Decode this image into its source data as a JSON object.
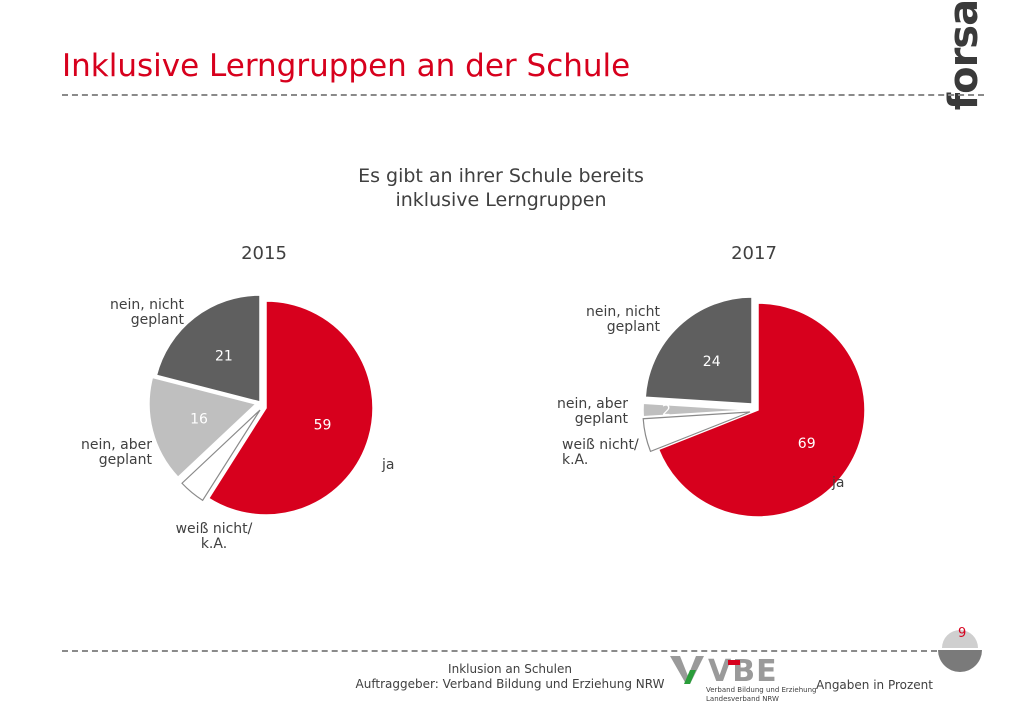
{
  "header": {
    "title": "Inklusive Lerngruppen an der Schule",
    "logo_text": "forsa."
  },
  "chart_data": [
    {
      "type": "pie",
      "title": "Es gibt an ihrer Schule bereits inklusive Lerngruppen",
      "year_label": "2015",
      "slices": [
        {
          "key": "ja",
          "label": "ja",
          "value": 59,
          "value_label": "59",
          "color": "#d7001d"
        },
        {
          "key": "weiss",
          "label": "weiß nicht/\nk.A.",
          "value": 4,
          "value_label": "",
          "color": "#ffffff"
        },
        {
          "key": "aber",
          "label": "nein, aber\ngeplant",
          "value": 16,
          "value_label": "16",
          "color": "#bfbfbf"
        },
        {
          "key": "nicht",
          "label": "nein, nicht\ngeplant",
          "value": 21,
          "value_label": "21",
          "color": "#5f5f5f"
        }
      ]
    },
    {
      "type": "pie",
      "title": "Es gibt an ihrer Schule bereits inklusive Lerngruppen",
      "year_label": "2017",
      "slices": [
        {
          "key": "ja",
          "label": "ja",
          "value": 69,
          "value_label": "69",
          "color": "#d7001d"
        },
        {
          "key": "weiss",
          "label": "weiß nicht/\nk.A.",
          "value": 5,
          "value_label": "",
          "color": "#ffffff"
        },
        {
          "key": "aber",
          "label": "nein, aber\ngeplant",
          "value": 2,
          "value_label": "2",
          "color": "#bfbfbf"
        },
        {
          "key": "nicht",
          "label": "nein, nicht\ngeplant",
          "value": 24,
          "value_label": "24",
          "color": "#5f5f5f"
        }
      ]
    }
  ],
  "labels": {
    "p2015": {
      "ja": "ja",
      "weiss_1": "weiß nicht/",
      "weiss_2": "k.A.",
      "aber_1": "nein, aber",
      "aber_2": "geplant",
      "nicht_1": "nein, nicht",
      "nicht_2": "geplant"
    },
    "p2017": {
      "ja": "ja",
      "weiss_1": "weiß nicht/",
      "weiss_2": "k.A.",
      "aber_1": "nein, aber",
      "aber_2": "geplant",
      "nicht_1": "nein, nicht",
      "nicht_2": "geplant"
    }
  },
  "subtitle": {
    "line1": "Es gibt an ihrer Schule bereits",
    "line2": "inklusive Lerngruppen"
  },
  "footer": {
    "line1": "Inklusion an Schulen",
    "line2": "Auftraggeber: Verband Bildung und Erziehung NRW",
    "right": "Angaben in Prozent",
    "page": "9",
    "vbe_letters": "VBE",
    "vbe_sub1": "Verband Bildung und Erziehung",
    "vbe_sub2": "Landesverband NRW"
  }
}
